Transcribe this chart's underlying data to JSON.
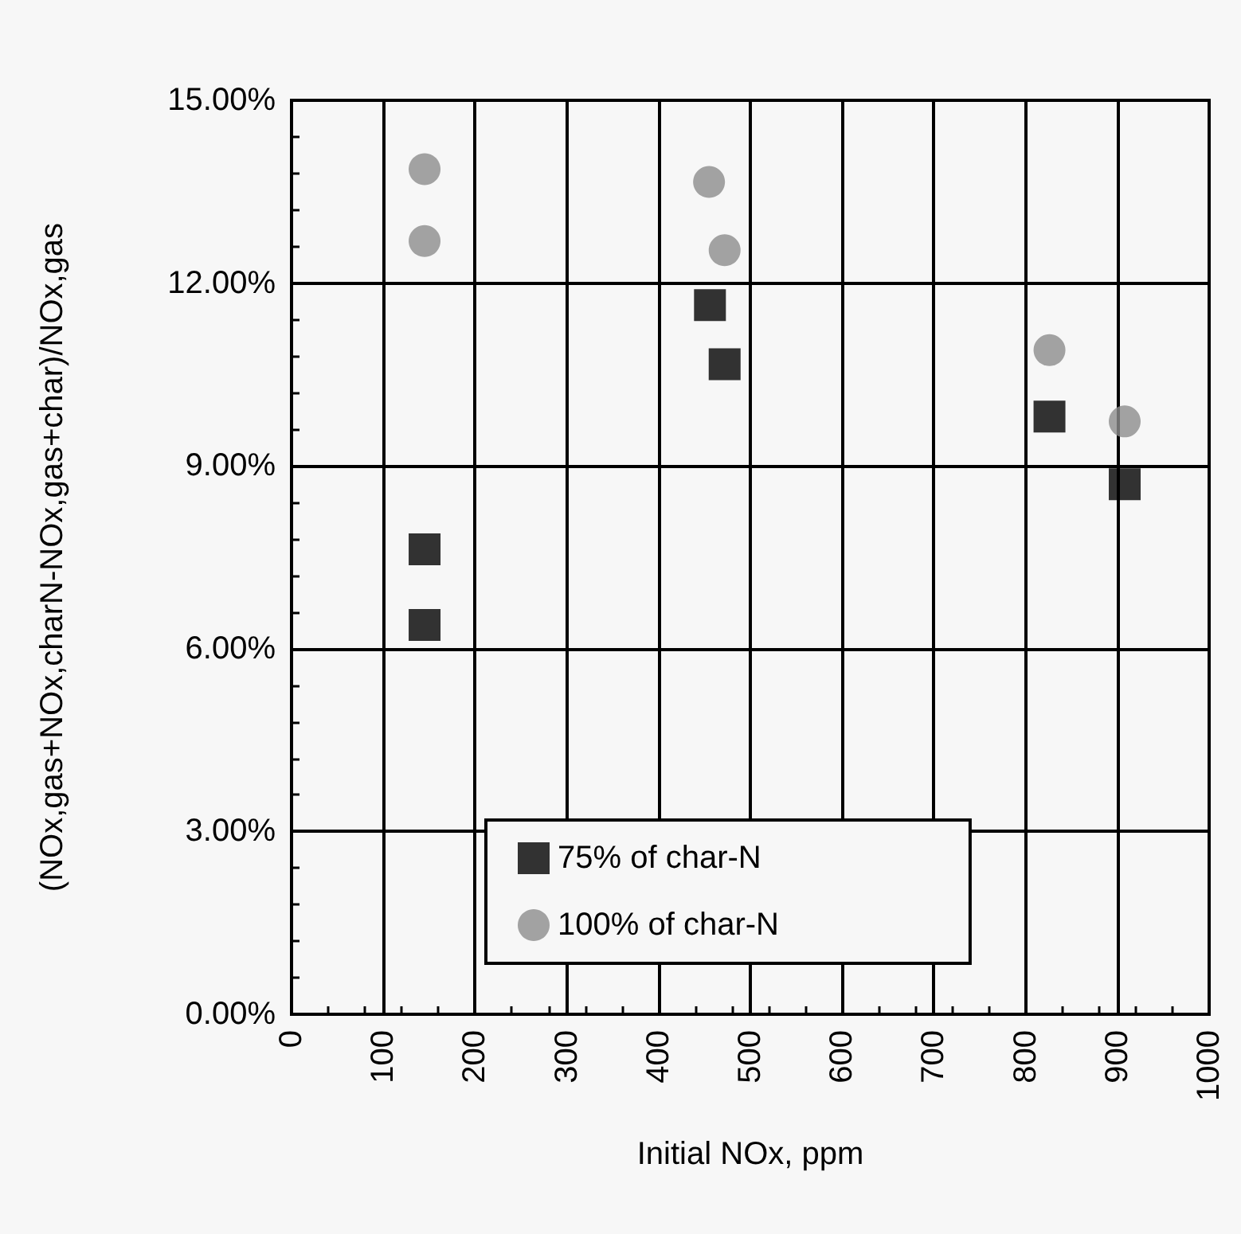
{
  "chart_data": {
    "type": "scatter",
    "xlabel": "Initial NOx, ppm",
    "ylabel": "(NOx,gas+NOx,charN-NOx,gas+char)/NOx,gas",
    "xlim": [
      0,
      1000
    ],
    "xticks": [
      0,
      100,
      200,
      300,
      400,
      500,
      600,
      700,
      800,
      900,
      1000
    ],
    "ylim": [
      0,
      15
    ],
    "yticks": [
      {
        "value": 0,
        "label": "0.00%"
      },
      {
        "value": 3,
        "label": "3.00%"
      },
      {
        "value": 6,
        "label": "6.00%"
      },
      {
        "value": 9,
        "label": "9.00%"
      },
      {
        "value": 12,
        "label": "12.00%"
      },
      {
        "value": 15,
        "label": "15.00%"
      }
    ],
    "grid": true,
    "legend": "bottom",
    "series": [
      {
        "name": "75% of char-N",
        "color": "#000000",
        "marker": "square",
        "x": [
          145,
          145,
          456,
          472,
          826,
          908
        ],
        "values": [
          7.63,
          6.39,
          11.64,
          10.67,
          9.81,
          8.7
        ]
      },
      {
        "name": "100% of char-N",
        "color": "#8c8c8c",
        "marker": "circle",
        "x": [
          145,
          145,
          455,
          472,
          826,
          908
        ],
        "values": [
          13.87,
          12.69,
          13.66,
          12.54,
          10.9,
          9.73
        ]
      }
    ]
  }
}
